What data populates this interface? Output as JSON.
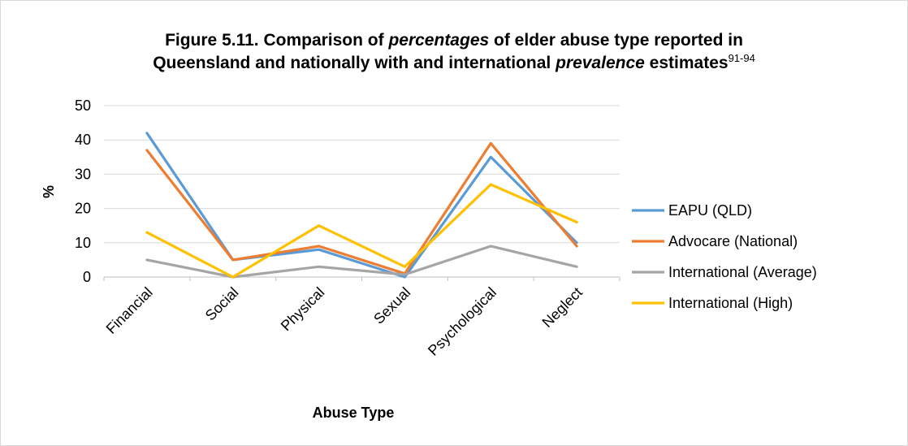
{
  "chart_data": {
    "type": "line",
    "title": {
      "line1_a": "Figure 5.11. Comparison of ",
      "line1_b": "percentages",
      "line1_c": " of elder abuse type reported in",
      "line2_a": "Queensland and nationally with and international ",
      "line2_b": "prevalence",
      "line2_c": " estimates",
      "superscript": "91-94"
    },
    "xlabel": "Abuse Type",
    "ylabel": "%",
    "categories": [
      "Financial",
      "Social",
      "Physical",
      "Sexual",
      "Psychological",
      "Neglect"
    ],
    "y_ticks": [
      "0",
      "10",
      "20",
      "30",
      "40",
      "50"
    ],
    "ylim": [
      0,
      50
    ],
    "grid": true,
    "legend_position": "right",
    "series": [
      {
        "name": "EAPU (QLD)",
        "color": "#5b9bd5",
        "values": [
          42,
          5,
          8,
          0,
          35,
          10
        ]
      },
      {
        "name": "Advocare (National)",
        "color": "#ed7d31",
        "values": [
          37,
          5,
          9,
          1,
          39,
          9
        ]
      },
      {
        "name": "International (Average)",
        "color": "#a5a5a5",
        "values": [
          5,
          0,
          3,
          0.7,
          9,
          3
        ]
      },
      {
        "name": "International (High)",
        "color": "#ffc000",
        "values": [
          13,
          0,
          15,
          3,
          27,
          16
        ]
      }
    ]
  }
}
